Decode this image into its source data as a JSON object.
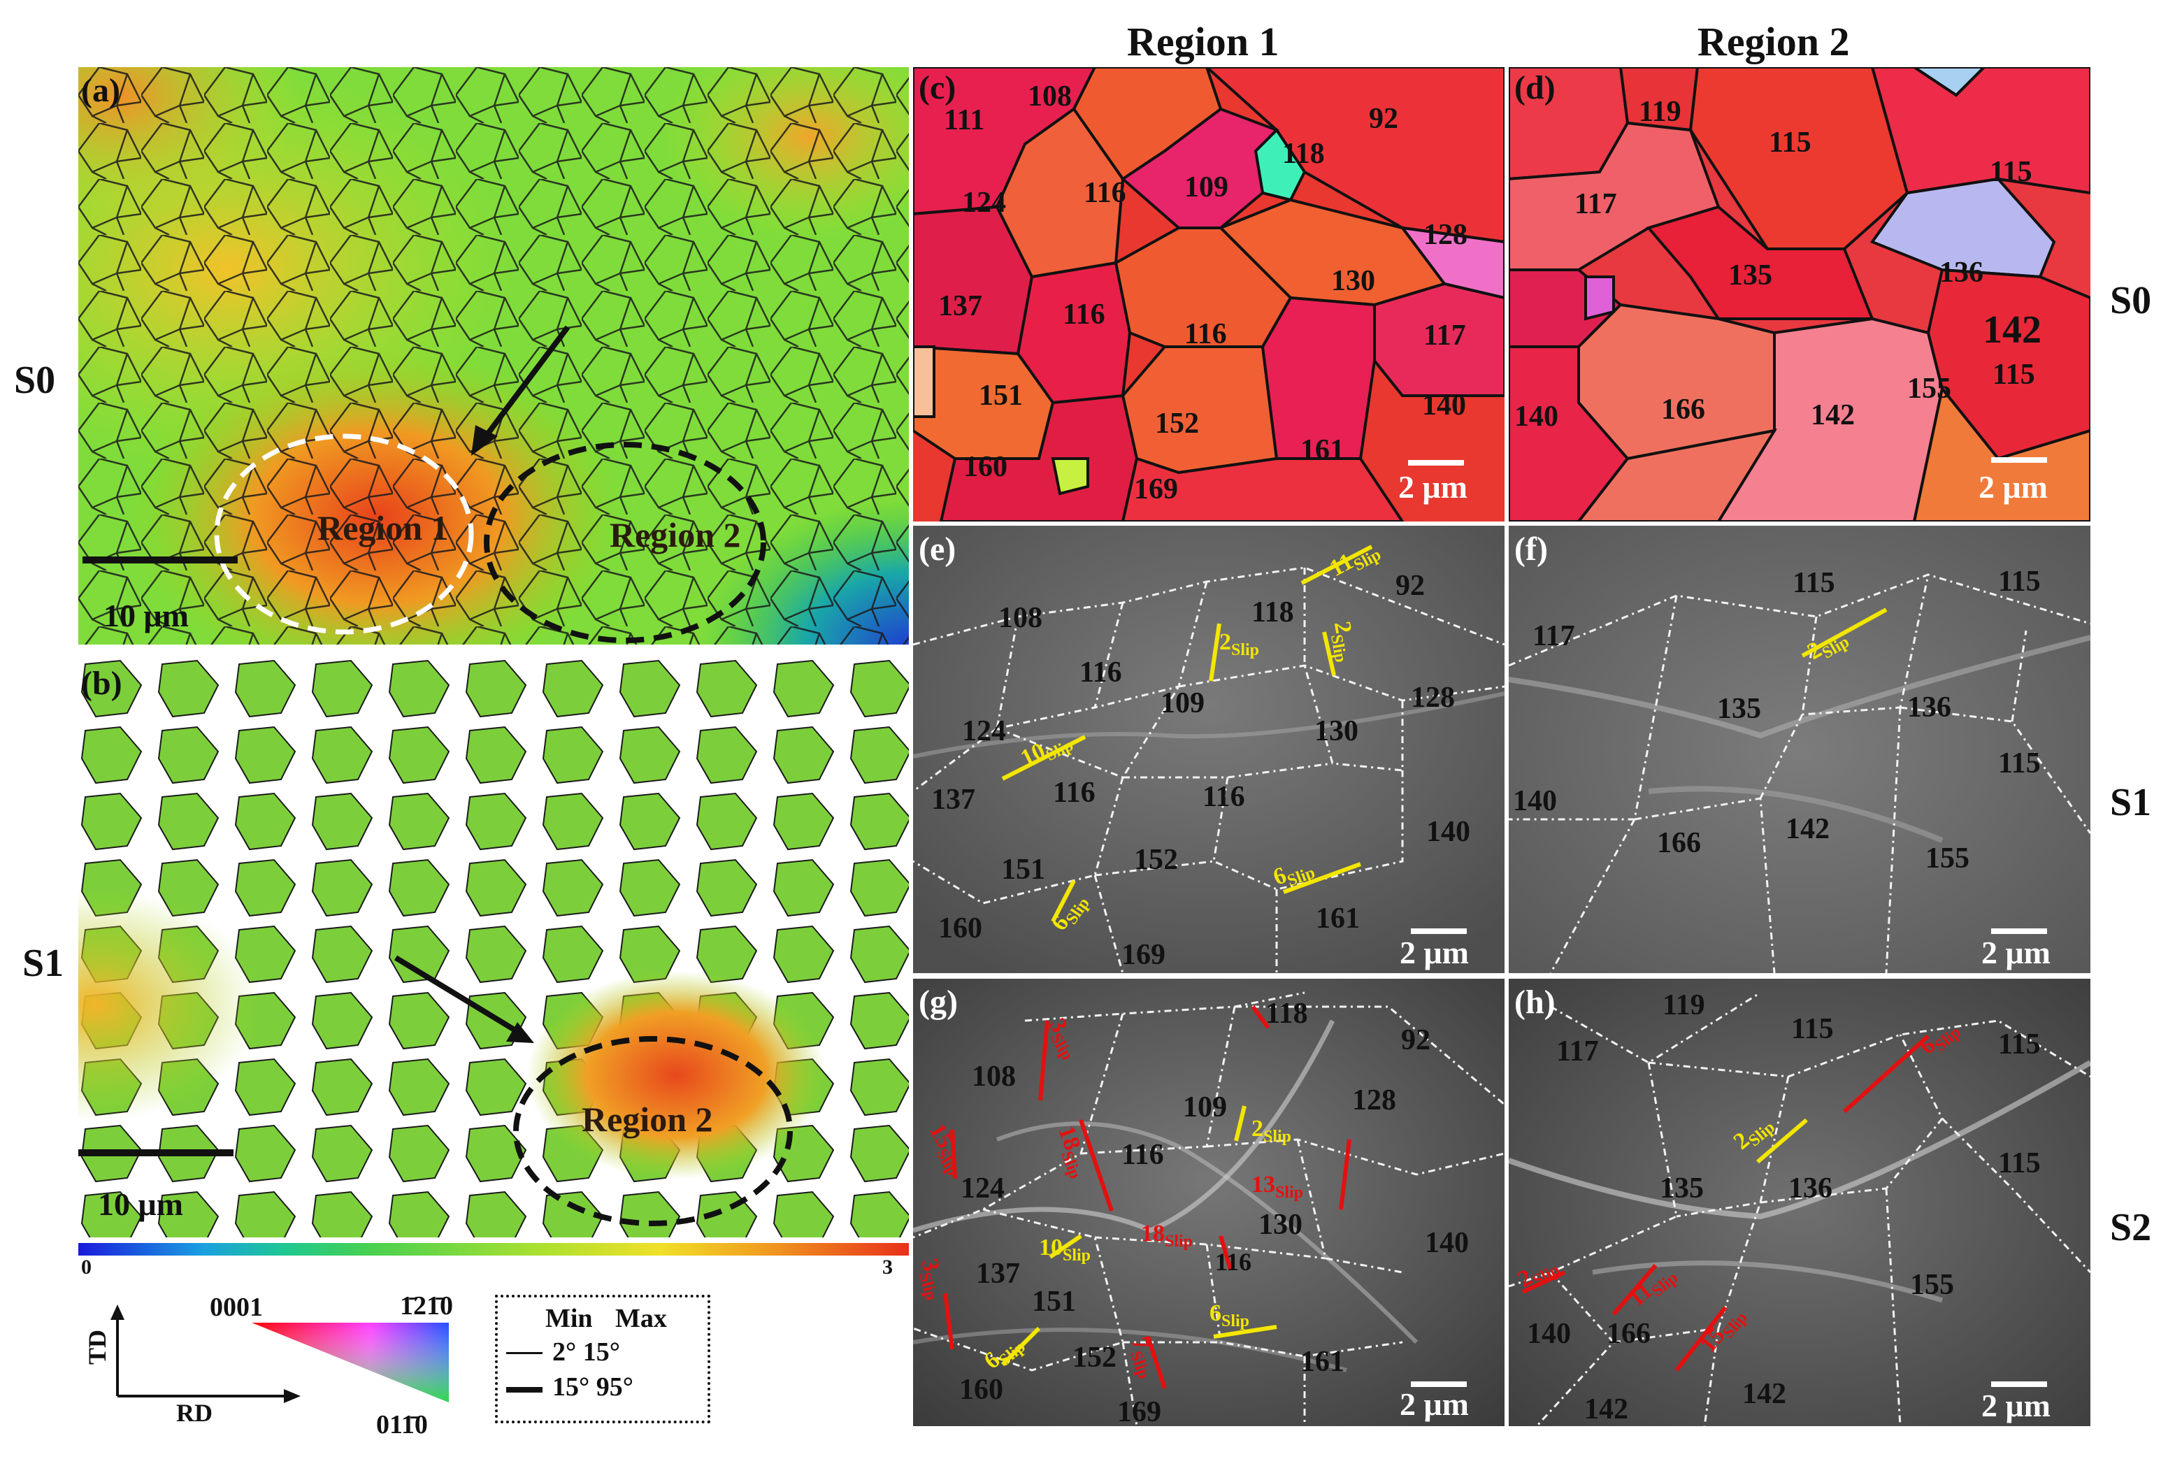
{
  "column_labels": {
    "region1": "Region 1",
    "region2": "Region 2"
  },
  "row_labels": {
    "s0_left": "S0",
    "s1_left": "S1",
    "s0_right": "S0",
    "s1_right": "S1",
    "s2_right": "S2"
  },
  "panels": {
    "a": {
      "label": "(a)",
      "scale": "10 μm",
      "region1": "Region 1",
      "region2": "Region 2"
    },
    "b": {
      "label": "(b)",
      "scale": "10 μm",
      "region2": "Region 2"
    },
    "c": {
      "label": "(c)",
      "scale": "2 μm",
      "grains": [
        "111",
        "108",
        "92",
        "118",
        "109",
        "116",
        "124",
        "128",
        "130",
        "137",
        "116",
        "116",
        "117",
        "151",
        "152",
        "140",
        "160",
        "161",
        "169"
      ]
    },
    "d": {
      "label": "(d)",
      "scale": "2 μm",
      "grains": [
        "119",
        "115",
        "115",
        "117",
        "135",
        "136",
        "142",
        "115",
        "155",
        "140",
        "166",
        "142"
      ]
    },
    "e": {
      "label": "(e)",
      "scale": "2 μm",
      "grains": [
        "108",
        "118",
        "92",
        "116",
        "109",
        "128",
        "124",
        "130",
        "137",
        "116",
        "116",
        "140",
        "151",
        "152",
        "161",
        "160",
        "169"
      ],
      "slips": [
        {
          "n": "11",
          "s": "Slip"
        },
        {
          "n": "2",
          "s": "Slip"
        },
        {
          "n": "2",
          "s": "Slip"
        },
        {
          "n": "10",
          "s": "Slip"
        },
        {
          "n": "6",
          "s": "Slip"
        },
        {
          "n": "6",
          "s": "Slip"
        }
      ]
    },
    "f": {
      "label": "(f)",
      "scale": "2 μm",
      "grains": [
        "115",
        "115",
        "117",
        "135",
        "136",
        "140",
        "142",
        "166",
        "115",
        "155"
      ],
      "slips": [
        {
          "n": "2",
          "s": "Slip"
        }
      ]
    },
    "g": {
      "label": "(g)",
      "scale": "2 μm",
      "grains": [
        "118",
        "92",
        "108",
        "109",
        "128",
        "116",
        "124",
        "130",
        "116",
        "140",
        "137",
        "151",
        "152",
        "161",
        "160",
        "169"
      ],
      "slips": [
        {
          "n": "3",
          "s": "Slip"
        },
        {
          "n": "15",
          "s": "Slip"
        },
        {
          "n": "18",
          "s": "Slip"
        },
        {
          "n": "2",
          "s": "Slip"
        },
        {
          "n": "13",
          "s": "Slip"
        },
        {
          "n": "10",
          "s": "Slip"
        },
        {
          "n": "18",
          "s": "Slip"
        },
        {
          "n": "3",
          "s": "Slip"
        },
        {
          "n": "7",
          "s": "Slip"
        },
        {
          "n": "6",
          "s": "Slip"
        },
        {
          "n": "6",
          "s": "Slip"
        }
      ]
    },
    "h": {
      "label": "(h)",
      "scale": "2 μm",
      "grains": [
        "119",
        "115",
        "115",
        "117",
        "135",
        "136",
        "115",
        "155",
        "140",
        "166",
        "142",
        "142"
      ],
      "slips": [
        {
          "n": "6",
          "s": "Slip"
        },
        {
          "n": "2",
          "s": "Slip"
        },
        {
          "n": "2",
          "s": "Slip"
        },
        {
          "n": "11",
          "s": "Slip"
        },
        {
          "n": "15",
          "s": "Slip"
        }
      ]
    }
  },
  "colorbar": {
    "min": "0",
    "max": "3"
  },
  "ipf_legend": {
    "top_left": "0001",
    "top_right": "1̄21̄0",
    "bottom": "011̄0",
    "td": "TD",
    "rd": "RD"
  },
  "boundary_legend": {
    "min": "Min",
    "max": "Max",
    "row1": "2°  15°",
    "row2": "15° 95°"
  },
  "colors": {
    "slip_yellow": "#f3e600",
    "slip_red": "#e41010",
    "region1_ellipse": "#ffffff",
    "region2_ellipse": "#111111"
  }
}
